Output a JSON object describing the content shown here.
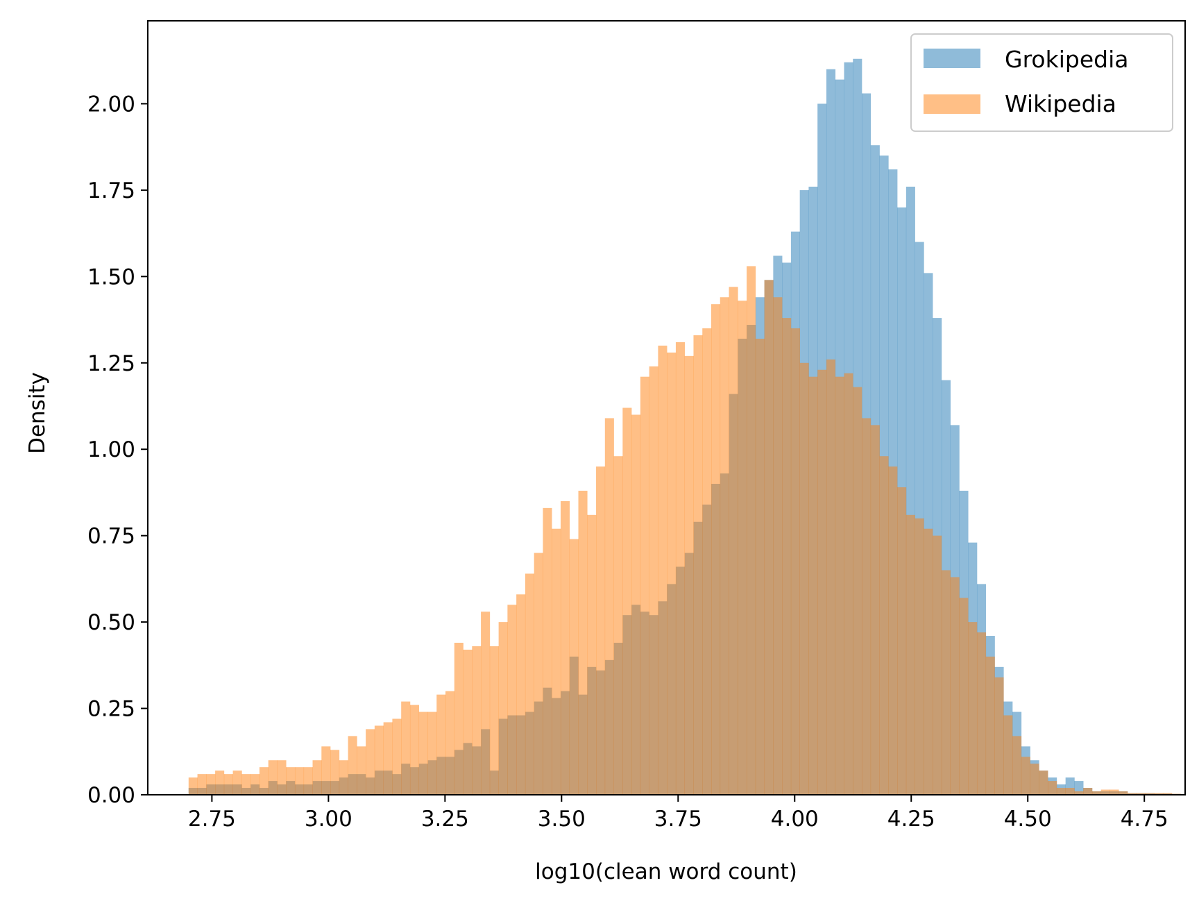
{
  "chart_data": {
    "type": "histogram",
    "xlabel": "log10(clean word count)",
    "ylabel": "Density",
    "xlim": [
      2.6125,
      4.8375
    ],
    "ylim": [
      0,
      2.24
    ],
    "xticks": [
      "2.75",
      "3.00",
      "3.25",
      "3.50",
      "3.75",
      "4.00",
      "4.25",
      "4.50",
      "4.75"
    ],
    "yticks": [
      "0.00",
      "0.25",
      "0.50",
      "0.75",
      "1.00",
      "1.25",
      "1.50",
      "1.75",
      "2.00"
    ],
    "legend_position": "top-right",
    "bin_start": 2.7,
    "bin_width": 0.019,
    "series": [
      {
        "name": "Grokipedia",
        "color": "#1f77b4",
        "alpha": 0.5,
        "values": [
          0.02,
          0.02,
          0.03,
          0.03,
          0.03,
          0.03,
          0.02,
          0.03,
          0.02,
          0.04,
          0.03,
          0.04,
          0.03,
          0.03,
          0.04,
          0.04,
          0.04,
          0.05,
          0.06,
          0.06,
          0.05,
          0.07,
          0.07,
          0.06,
          0.09,
          0.08,
          0.09,
          0.1,
          0.11,
          0.11,
          0.13,
          0.15,
          0.14,
          0.19,
          0.07,
          0.22,
          0.23,
          0.23,
          0.24,
          0.27,
          0.31,
          0.28,
          0.3,
          0.4,
          0.29,
          0.37,
          0.36,
          0.39,
          0.44,
          0.52,
          0.55,
          0.53,
          0.52,
          0.56,
          0.61,
          0.66,
          0.7,
          0.79,
          0.84,
          0.9,
          0.93,
          1.16,
          1.32,
          1.36,
          1.44,
          1.49,
          1.56,
          1.54,
          1.63,
          1.75,
          1.76,
          2.0,
          2.1,
          2.07,
          2.12,
          2.13,
          2.03,
          1.88,
          1.85,
          1.81,
          1.7,
          1.76,
          1.6,
          1.51,
          1.38,
          1.2,
          1.07,
          0.88,
          0.73,
          0.61,
          0.46,
          0.37,
          0.27,
          0.24,
          0.14,
          0.1,
          0.07,
          0.05,
          0.03,
          0.05,
          0.04,
          0.02,
          0.01,
          0.01,
          0.01,
          0.01,
          0.005,
          0.005,
          0.005,
          0.004,
          0.004,
          0.003
        ]
      },
      {
        "name": "Wikipedia",
        "color": "#ff7f0e",
        "alpha": 0.5,
        "values": [
          0.05,
          0.06,
          0.06,
          0.07,
          0.06,
          0.07,
          0.06,
          0.06,
          0.08,
          0.1,
          0.1,
          0.08,
          0.08,
          0.08,
          0.1,
          0.14,
          0.13,
          0.1,
          0.17,
          0.14,
          0.19,
          0.2,
          0.21,
          0.22,
          0.27,
          0.26,
          0.24,
          0.24,
          0.29,
          0.3,
          0.44,
          0.42,
          0.43,
          0.53,
          0.43,
          0.5,
          0.55,
          0.58,
          0.64,
          0.7,
          0.83,
          0.77,
          0.85,
          0.74,
          0.88,
          0.81,
          0.95,
          1.09,
          0.98,
          1.12,
          1.1,
          1.21,
          1.24,
          1.3,
          1.28,
          1.31,
          1.27,
          1.33,
          1.35,
          1.42,
          1.44,
          1.47,
          1.43,
          1.53,
          1.32,
          1.49,
          1.44,
          1.38,
          1.35,
          1.25,
          1.21,
          1.23,
          1.26,
          1.21,
          1.22,
          1.18,
          1.09,
          1.07,
          0.98,
          0.95,
          0.89,
          0.81,
          0.8,
          0.77,
          0.75,
          0.65,
          0.63,
          0.57,
          0.5,
          0.47,
          0.4,
          0.34,
          0.23,
          0.17,
          0.11,
          0.09,
          0.07,
          0.04,
          0.02,
          0.02,
          0.01,
          0.02,
          0.01,
          0.015,
          0.015,
          0.01,
          0.005,
          0.005,
          0.005,
          0.005,
          0.005,
          0.003
        ]
      }
    ]
  }
}
